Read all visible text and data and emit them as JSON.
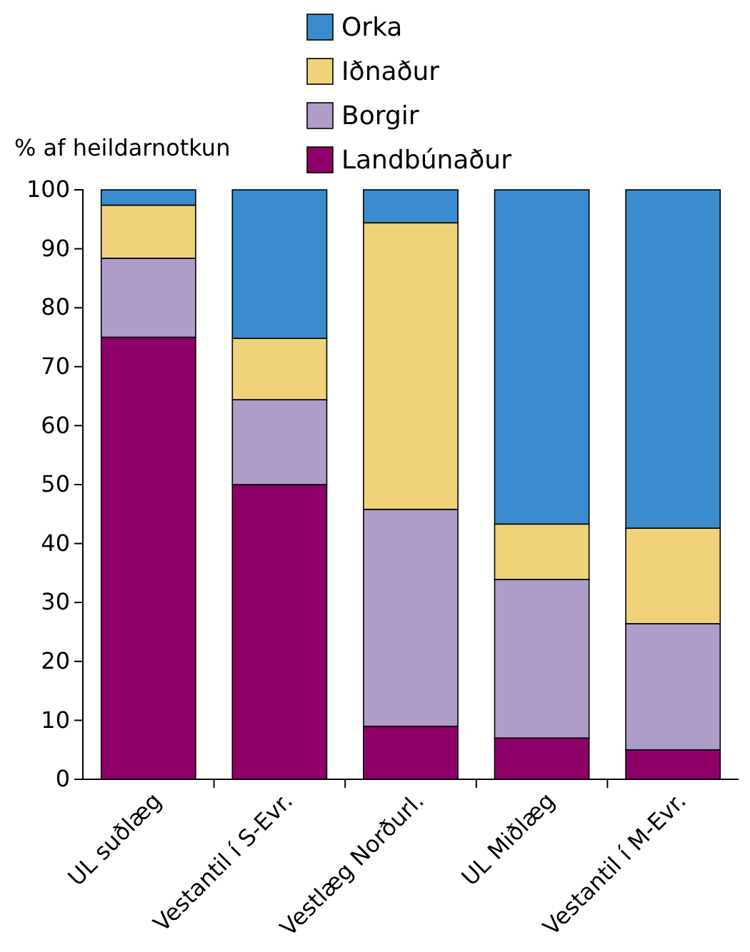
{
  "chart_data": {
    "type": "bar",
    "stacked": true,
    "ylabel": "% af heildarnotkun",
    "categories": [
      "UL suðlæg",
      "Vestantil í S-Evr.",
      "Vestlæg Norðurl.",
      "UL Miðlæg",
      "Vestantil í M-Evr."
    ],
    "series": [
      {
        "name": "Landbúnaður",
        "color": "#8e0068",
        "values": [
          75,
          50,
          9,
          7,
          5
        ]
      },
      {
        "name": "Borgir",
        "color": "#ad9dc8",
        "values": [
          13.4,
          14.4,
          36.8,
          26.9,
          21.4
        ]
      },
      {
        "name": "Iðnaður",
        "color": "#f0d27a",
        "values": [
          9,
          10.4,
          48.6,
          9.4,
          16.2
        ]
      },
      {
        "name": "Orka",
        "color": "#3a8ccf",
        "values": [
          2.6,
          25.2,
          5.6,
          56.7,
          57.4
        ]
      }
    ],
    "ylim": [
      0,
      100
    ],
    "yticks": [
      0,
      10,
      20,
      30,
      40,
      50,
      60,
      70,
      80,
      90,
      100
    ],
    "legend": "top"
  }
}
